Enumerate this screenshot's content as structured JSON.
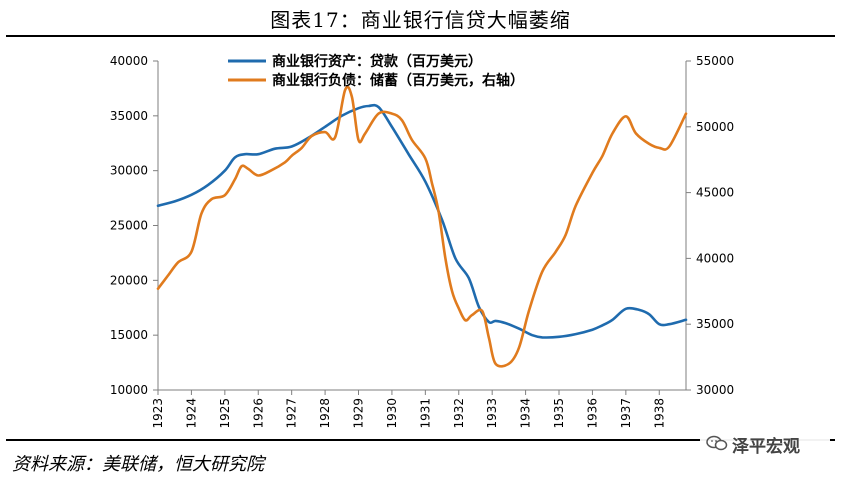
{
  "title": "图表17：商业银行信贷大幅萎缩",
  "source": "资料来源：美联储，恒大研究院",
  "watermark": "泽平宏观",
  "chart_data": {
    "type": "line",
    "x_ticks": [
      "1923",
      "1924",
      "1925",
      "1926",
      "1927",
      "1928",
      "1929",
      "1930",
      "1931",
      "1932",
      "1933",
      "1934",
      "1935",
      "1936",
      "1937",
      "1938"
    ],
    "x_range": [
      1923,
      1938.8
    ],
    "y_left": {
      "ylim": [
        10000,
        40000
      ],
      "ticks": [
        "10000",
        "15000",
        "20000",
        "25000",
        "30000",
        "35000",
        "40000"
      ]
    },
    "y_right": {
      "ylim": [
        30000,
        55000
      ],
      "ticks": [
        "30000",
        "35000",
        "40000",
        "45000",
        "50000",
        "55000"
      ]
    },
    "legend_position": "top-center",
    "grid": false,
    "series": [
      {
        "name": "商业银行资产：贷款（百万美元）",
        "axis": "left",
        "color": "#1F6BAE",
        "x": [
          1923,
          1923.5,
          1924,
          1924.5,
          1925,
          1925.3,
          1925.6,
          1926,
          1926.5,
          1927,
          1927.5,
          1928,
          1928.5,
          1929,
          1929.3,
          1929.6,
          1930,
          1930.5,
          1931,
          1931.5,
          1931.9,
          1932.3,
          1932.6,
          1932.9,
          1933.1,
          1933.4,
          1933.8,
          1934.2,
          1934.5,
          1935,
          1935.5,
          1936,
          1936.3,
          1936.6,
          1937,
          1937.4,
          1937.7,
          1938,
          1938.3,
          1938.8
        ],
        "y": [
          26800,
          27200,
          27800,
          28700,
          30000,
          31200,
          31500,
          31500,
          32000,
          32200,
          33000,
          34000,
          35000,
          35700,
          35900,
          35800,
          34000,
          31500,
          29000,
          25500,
          22000,
          20200,
          17600,
          16200,
          16300,
          16100,
          15600,
          15000,
          14800,
          14850,
          15100,
          15500,
          15900,
          16400,
          17400,
          17300,
          16900,
          16000,
          16000,
          16400
        ]
      },
      {
        "name": "商业银行负债：储蓄（百万美元，右轴）",
        "axis": "right",
        "color": "#E07B1E",
        "x": [
          1923,
          1923.3,
          1923.6,
          1924,
          1924.3,
          1924.6,
          1925,
          1925.3,
          1925.5,
          1925.7,
          1926,
          1926.4,
          1926.8,
          1927,
          1927.3,
          1927.6,
          1928,
          1928.3,
          1928.6,
          1928.8,
          1929,
          1929.2,
          1929.6,
          1930,
          1930.3,
          1930.6,
          1931,
          1931.2,
          1931.4,
          1931.6,
          1931.8,
          1932,
          1932.2,
          1932.4,
          1932.7,
          1932.9,
          1933.1,
          1933.5,
          1933.8,
          1934.1,
          1934.5,
          1934.9,
          1935.2,
          1935.5,
          1936,
          1936.3,
          1936.6,
          1937,
          1937.3,
          1937.7,
          1938,
          1938.3,
          1938.8
        ],
        "y": [
          37700,
          38700,
          39700,
          40500,
          43400,
          44500,
          44800,
          46000,
          47000,
          46800,
          46300,
          46700,
          47300,
          47800,
          48400,
          49300,
          49600,
          49200,
          52800,
          52300,
          49000,
          49500,
          51000,
          51000,
          50500,
          49000,
          47600,
          45700,
          43500,
          40000,
          37500,
          36200,
          35300,
          35700,
          36000,
          34000,
          32000,
          32000,
          33200,
          36000,
          39000,
          40500,
          41800,
          44000,
          46500,
          47800,
          49500,
          50800,
          49500,
          48700,
          48400,
          48500,
          51000
        ]
      }
    ]
  }
}
